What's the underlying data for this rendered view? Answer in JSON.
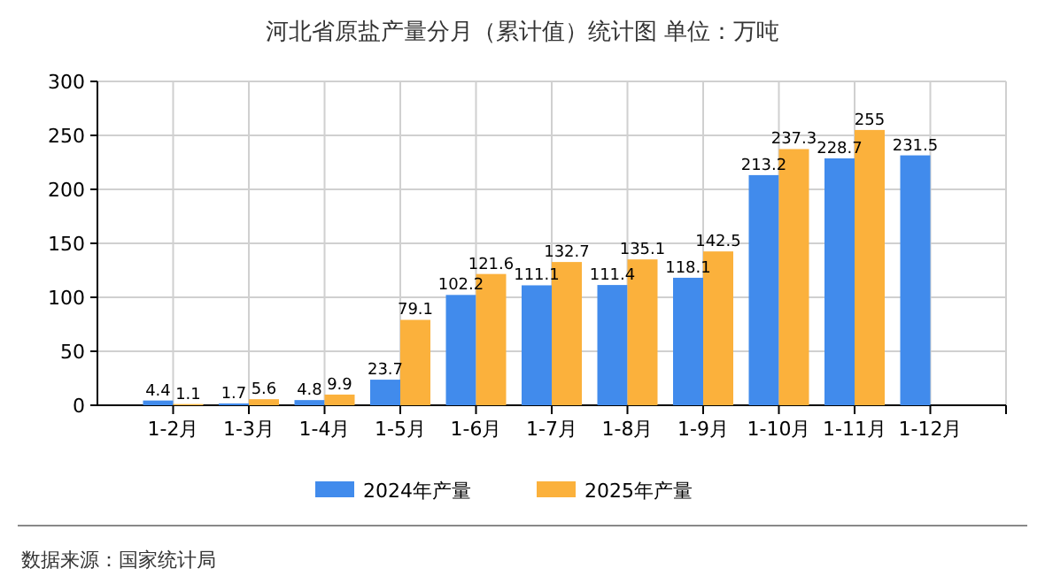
{
  "chart_data": {
    "type": "bar",
    "title": "河北省原盐产量分月（累计值）统计图 单位：万吨",
    "categories": [
      "1-2月",
      "1-3月",
      "1-4月",
      "1-5月",
      "1-6月",
      "1-7月",
      "1-8月",
      "1-9月",
      "1-10月",
      "1-11月",
      "1-12月"
    ],
    "series": [
      {
        "name": "2024年产量",
        "color": "#418bec",
        "values": [
          4.4,
          1.7,
          4.8,
          23.7,
          102.2,
          111.1,
          111.4,
          118.1,
          213.2,
          228.7,
          231.5
        ]
      },
      {
        "name": "2025年产量",
        "color": "#fbb13c",
        "values": [
          1.1,
          5.6,
          9.9,
          79.1,
          121.6,
          132.7,
          135.1,
          142.5,
          237.3,
          255,
          null
        ]
      }
    ],
    "ylim": [
      0,
      300
    ],
    "yticks": [
      0,
      50,
      100,
      150,
      200,
      250,
      300
    ],
    "grid": true,
    "legend": "bottom",
    "data_labels": true,
    "annotations": [
      "数据来源：国家统计局"
    ]
  }
}
